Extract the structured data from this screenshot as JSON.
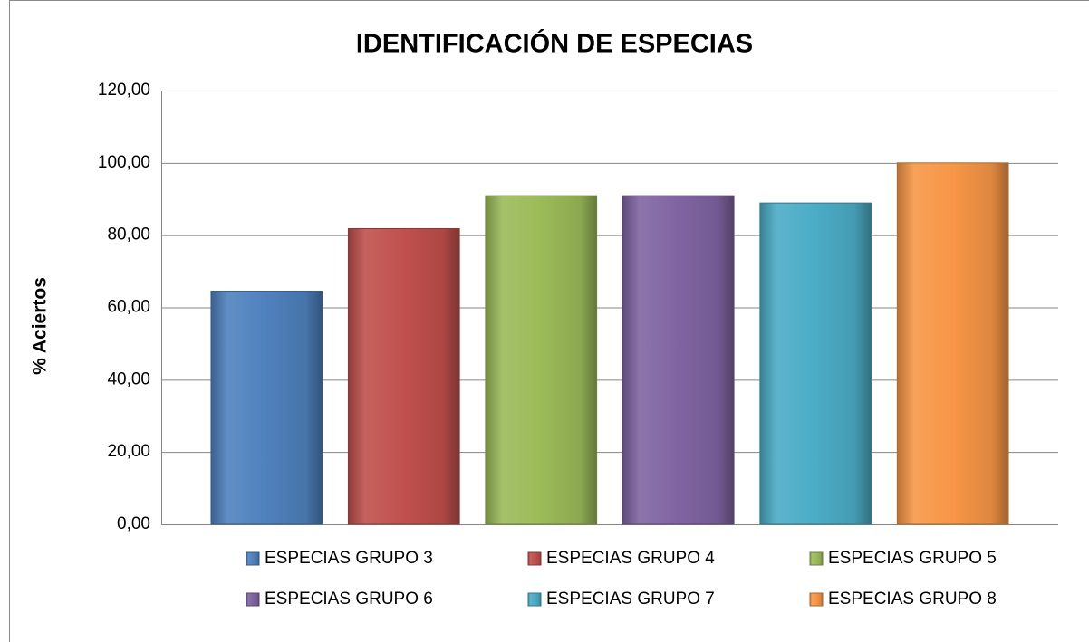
{
  "chart_data": {
    "type": "bar",
    "title": "IDENTIFICACIÓN DE ESPECIAS",
    "y_label": "% Aciertos",
    "series": [
      {
        "name": "ESPECIAS GRUPO 3",
        "color": "#4f81bd",
        "values": [
          64.5
        ]
      },
      {
        "name": "ESPECIAS GRUPO 4",
        "color": "#c0504d",
        "values": [
          81.8
        ]
      },
      {
        "name": "ESPECIAS GRUPO 5",
        "color": "#9bbb59",
        "values": [
          90.9
        ]
      },
      {
        "name": "ESPECIAS GRUPO 6",
        "color": "#8064a2",
        "values": [
          90.9
        ]
      },
      {
        "name": "ESPECIAS GRUPO 7",
        "color": "#4bacc6",
        "values": [
          88.9
        ]
      },
      {
        "name": "ESPECIAS GRUPO 8",
        "color": "#f79646",
        "values": [
          100
        ]
      }
    ],
    "ylim": [
      0,
      120
    ],
    "yticks": [
      {
        "value": 0,
        "label": "0,00"
      },
      {
        "value": 20,
        "label": "20,00"
      },
      {
        "value": 40,
        "label": "40,00"
      },
      {
        "value": 60,
        "label": "60,00"
      },
      {
        "value": 80,
        "label": "80,00"
      },
      {
        "value": 100,
        "label": "100,00"
      },
      {
        "value": 120,
        "label": "120,00"
      }
    ],
    "grid": true,
    "legend": "bottom"
  }
}
